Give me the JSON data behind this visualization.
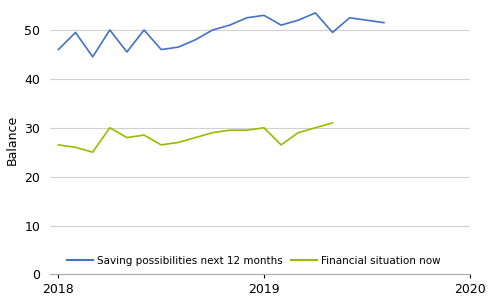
{
  "saving_x": [
    0,
    1,
    2,
    3,
    4,
    5,
    6,
    7,
    8,
    9,
    10,
    11,
    12,
    13,
    14,
    15,
    16,
    17,
    18,
    19
  ],
  "saving_y": [
    46,
    49.5,
    44.5,
    50,
    45.5,
    50,
    46,
    46.5,
    48,
    50,
    51,
    52.5,
    53,
    51,
    52,
    53.5,
    49.5,
    52.5,
    52,
    51.5
  ],
  "financial_x": [
    0,
    1,
    2,
    3,
    4,
    5,
    6,
    7,
    8,
    9,
    10,
    11,
    12,
    13,
    14,
    15,
    16
  ],
  "financial_y": [
    26.5,
    26.0,
    25.0,
    30.0,
    28.0,
    28.5,
    26.5,
    27.0,
    28.0,
    29.0,
    29.5,
    29.5,
    30.0,
    26.5,
    29.0,
    30.0,
    31.0
  ],
  "saving_color": "#4472C4",
  "financial_color": "#9BBB00",
  "ylabel": "Balance",
  "ylim": [
    0,
    55
  ],
  "yticks": [
    0,
    10,
    20,
    30,
    40,
    50
  ],
  "xtick_positions": [
    0,
    12,
    24
  ],
  "xtick_labels": [
    "2018",
    "2019",
    "2020"
  ],
  "xlim": [
    -0.5,
    24
  ],
  "legend_saving": "Saving possibilities next 12 months",
  "legend_financial": "Financial situation now",
  "background_color": "#ffffff",
  "grid_color": "#d0d0d0"
}
